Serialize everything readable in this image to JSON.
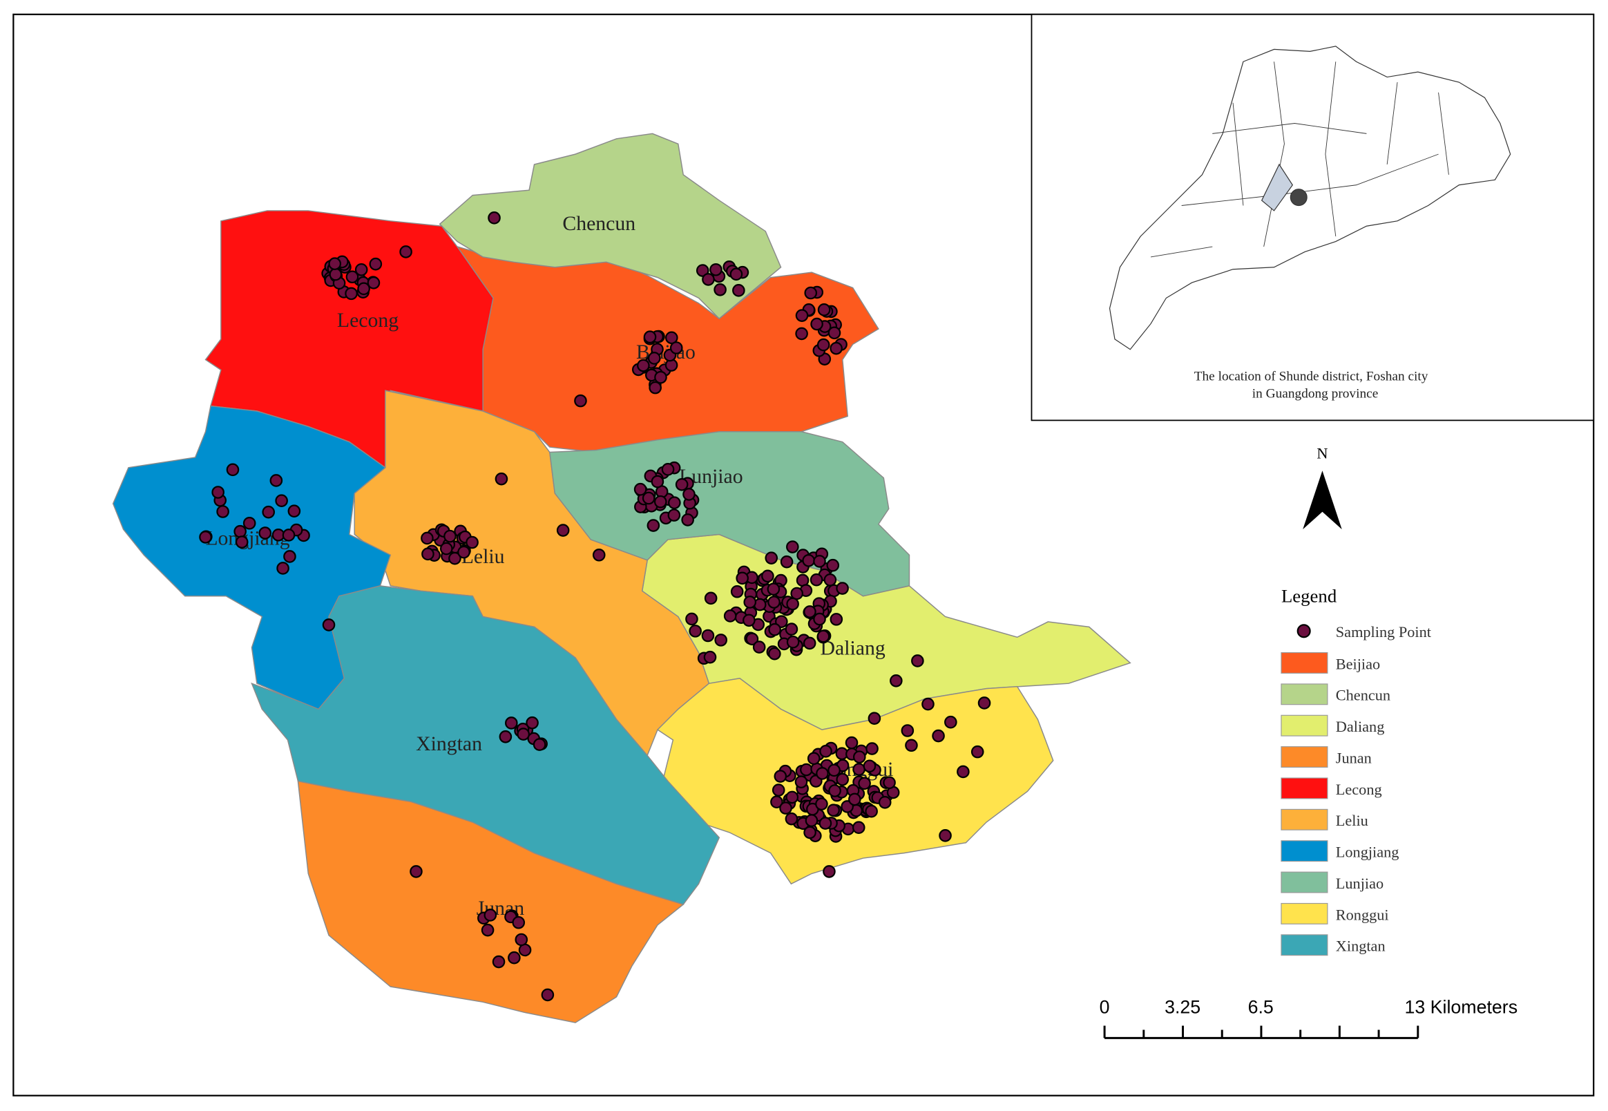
{
  "map": {
    "region_labels": [
      "Chencun",
      "Lecong",
      "Beijiao",
      "Lunjiao",
      "Longjiang",
      "Leliu",
      "Daliang",
      "Xingtan",
      "Junan",
      "Ronggui"
    ],
    "inset": {
      "caption": [
        "The location of Shunde district, Foshan city",
        "in Guangdong province"
      ]
    },
    "north": "N",
    "legend": {
      "title": "Legend",
      "point": {
        "label": "Sampling Point",
        "color": "#6b0f3f"
      },
      "items": [
        {
          "label": "Beijiao",
          "color": "#fd5a1e"
        },
        {
          "label": "Chencun",
          "color": "#b5d48a"
        },
        {
          "label": "Daliang",
          "color": "#e2ee6e"
        },
        {
          "label": "Junan",
          "color": "#fd8a28"
        },
        {
          "label": "Lecong",
          "color": "#ff1010"
        },
        {
          "label": "Leliu",
          "color": "#fdb03a"
        },
        {
          "label": "Longjiang",
          "color": "#008fcf"
        },
        {
          "label": "Lunjiao",
          "color": "#80bf9c"
        },
        {
          "label": "Ronggui",
          "color": "#ffe34d"
        },
        {
          "label": "Xingtan",
          "color": "#3ba7b5"
        }
      ]
    },
    "scale_bar": {
      "labels": [
        "0",
        "3.25",
        "6.5",
        "13 Kilometers"
      ]
    }
  }
}
